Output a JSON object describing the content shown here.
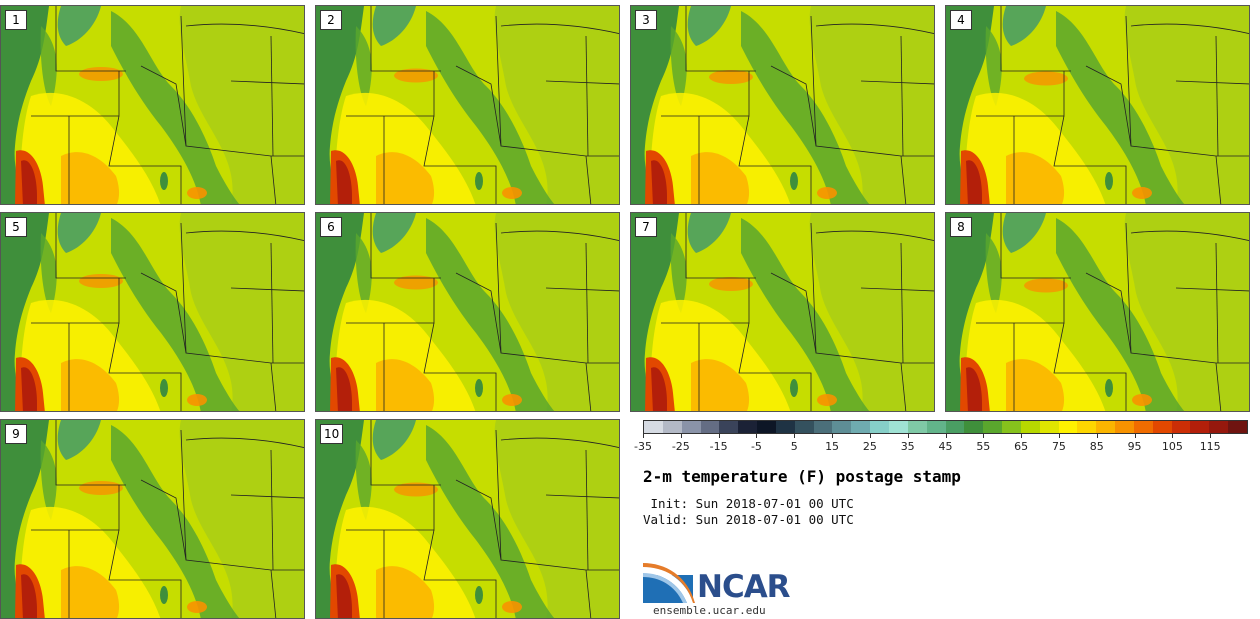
{
  "panels": [
    "1",
    "2",
    "3",
    "4",
    "5",
    "6",
    "7",
    "8",
    "9",
    "10"
  ],
  "colorbar": {
    "colors": [
      "#d6dbe3",
      "#b3b9c6",
      "#8a93a8",
      "#646d84",
      "#3a435a",
      "#1b2236",
      "#0d1626",
      "#1f3344",
      "#34515e",
      "#4b6f7a",
      "#5e8e96",
      "#6fabb0",
      "#86cfc8",
      "#9fe2d4",
      "#7fc9a6",
      "#62b48a",
      "#4a9e63",
      "#3f8f3b",
      "#5aa72d",
      "#86c21c",
      "#b7d800",
      "#dfe600",
      "#fff200",
      "#fdd600",
      "#fbb500",
      "#f79200",
      "#f06c00",
      "#e24800",
      "#cc2e06",
      "#b31f0a",
      "#96180d",
      "#6f1410"
    ],
    "tick_labels": [
      "-35",
      "-25",
      "-15",
      "-5",
      "5",
      "15",
      "25",
      "35",
      "45",
      "55",
      "65",
      "75",
      "85",
      "95",
      "105",
      "115"
    ]
  },
  "title": "2-m temperature (F) postage stamp",
  "init_text": " Init: Sun 2018-07-01 00 UTC",
  "valid_text": "Valid: Sun 2018-07-01 00 UTC",
  "logo_text": "NCAR",
  "site_text": "ensemble.ucar.edu"
}
